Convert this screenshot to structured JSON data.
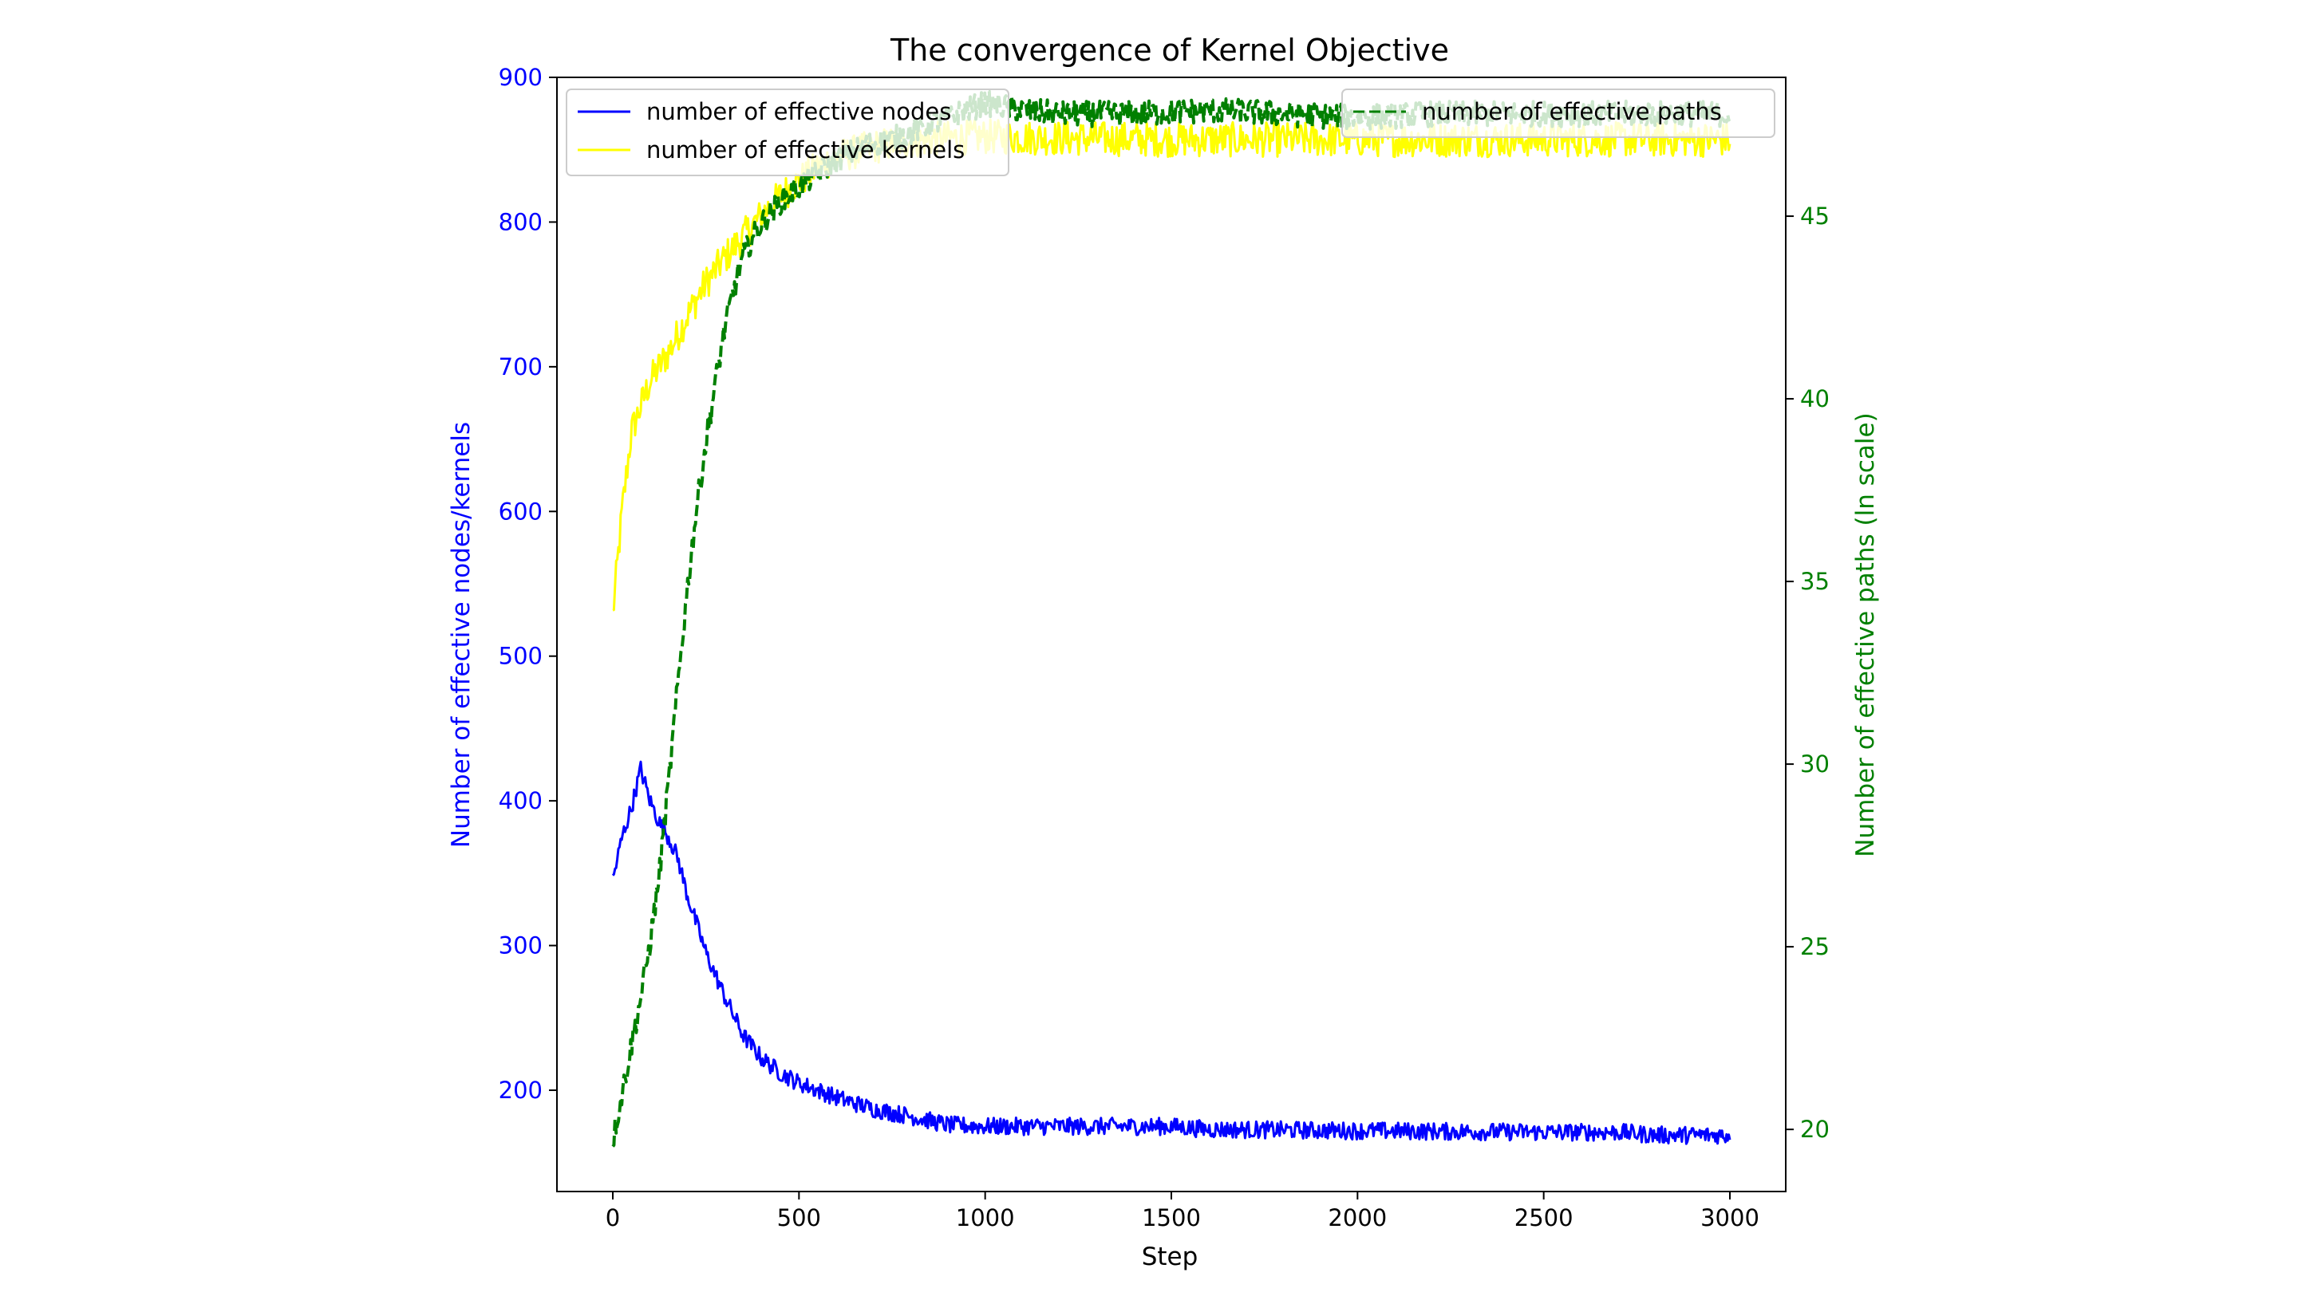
{
  "chart_data": {
    "type": "line",
    "title": "The convergence of Kernel Objective",
    "xlabel": "Step",
    "ylabel_left": "Number of effective nodes/kernels",
    "ylabel_right": "Number of effective paths (ln scale)",
    "xlim": [
      -150,
      3150
    ],
    "ylim_left": [
      130,
      900
    ],
    "ylim_right": [
      18.3,
      48.8
    ],
    "x_ticks": [
      0,
      500,
      1000,
      1500,
      2000,
      2500,
      3000
    ],
    "y_left_ticks": [
      200,
      300,
      400,
      500,
      600,
      700,
      800,
      900
    ],
    "y_right_ticks": [
      20,
      25,
      30,
      35,
      40,
      45
    ],
    "grid": false,
    "legend_left_placement": "top-left",
    "legend_right_placement": "top-right",
    "colors": {
      "left_axis": "#0000ff",
      "right_axis": "#008000",
      "nodes": "#0000ff",
      "kernels": "#ffff00",
      "paths": "#008000"
    },
    "series": [
      {
        "name": "number of effective nodes",
        "axis": "left",
        "style": "solid",
        "color": "#0000ff",
        "x": [
          0,
          25,
          50,
          75,
          100,
          125,
          150,
          175,
          200,
          250,
          300,
          350,
          400,
          450,
          500,
          600,
          700,
          800,
          900,
          1000,
          1200,
          1500,
          1600,
          2000,
          2500,
          2700,
          2800,
          3000
        ],
        "values": [
          345,
          375,
          395,
          422,
          400,
          385,
          375,
          360,
          335,
          295,
          265,
          238,
          222,
          212,
          205,
          195,
          187,
          182,
          176,
          175,
          175,
          175,
          173,
          172,
          171,
          171,
          169,
          169
        ]
      },
      {
        "name": "number of effective kernels",
        "axis": "left",
        "style": "solid",
        "color": "#ffff00",
        "x": [
          0,
          25,
          50,
          100,
          150,
          200,
          250,
          300,
          350,
          400,
          450,
          500,
          550,
          600,
          700,
          800,
          900,
          1000,
          1200,
          1500,
          2000,
          2500,
          3000
        ],
        "values": [
          528,
          600,
          655,
          690,
          710,
          735,
          758,
          775,
          790,
          805,
          818,
          828,
          838,
          845,
          852,
          856,
          858,
          859,
          858,
          857,
          857,
          857,
          857
        ]
      },
      {
        "name": "number of effective paths",
        "axis": "right",
        "style": "dashed",
        "color": "#008000",
        "x": [
          0,
          25,
          50,
          75,
          100,
          125,
          150,
          175,
          200,
          225,
          250,
          275,
          300,
          325,
          350,
          375,
          400,
          450,
          500,
          550,
          600,
          650,
          700,
          750,
          800,
          850,
          900,
          950,
          1000,
          1100,
          1200,
          1400,
          1600,
          1800,
          2000,
          2200,
          2500,
          2700,
          3000
        ],
        "values": [
          19.7,
          21.0,
          22.3,
          23.6,
          25.1,
          27.0,
          29.5,
          32.2,
          34.8,
          37.0,
          38.8,
          40.4,
          41.9,
          43.0,
          43.9,
          44.4,
          44.8,
          45.4,
          45.8,
          46.2,
          46.5,
          46.8,
          47.0,
          47.1,
          47.3,
          47.5,
          47.7,
          47.9,
          48.1,
          47.9,
          47.8,
          47.8,
          47.9,
          47.8,
          47.7,
          47.8,
          47.8,
          47.8,
          47.8
        ]
      }
    ]
  }
}
